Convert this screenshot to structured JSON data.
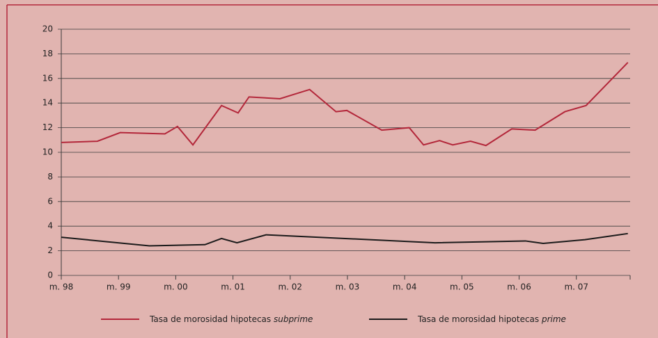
{
  "chart_data": {
    "type": "line",
    "xlim": [
      1998,
      2007.94
    ],
    "xticks": [
      {
        "value": 1998,
        "label": "m. 98"
      },
      {
        "value": 1999,
        "label": "m. 99"
      },
      {
        "value": 2000,
        "label": "m. 00"
      },
      {
        "value": 2001,
        "label": "m. 01"
      },
      {
        "value": 2002,
        "label": "m. 02"
      },
      {
        "value": 2003,
        "label": "m. 03"
      },
      {
        "value": 2004,
        "label": "m. 04"
      },
      {
        "value": 2005,
        "label": "m. 05"
      },
      {
        "value": 2006,
        "label": "m. 06"
      },
      {
        "value": 2007,
        "label": "m. 07"
      }
    ],
    "ylim": [
      0,
      20
    ],
    "yticks": [
      0,
      2,
      4,
      6,
      8,
      10,
      12,
      14,
      16,
      18,
      20
    ],
    "grid": true,
    "series": [
      {
        "name": "Tasa de morosidad hipotecas subprime",
        "color": "#b3273a",
        "x": [
          1998.0,
          1998.63,
          1999.03,
          1999.81,
          2000.03,
          2000.3,
          2000.8,
          2001.09,
          2001.28,
          2001.82,
          2002.34,
          2002.8,
          2002.99,
          2003.6,
          2004.08,
          2004.33,
          2004.61,
          2004.84,
          2005.15,
          2005.42,
          2005.87,
          2006.28,
          2006.8,
          2007.17,
          2007.9
        ],
        "values": [
          10.8,
          10.9,
          11.6,
          11.5,
          12.1,
          10.6,
          13.8,
          13.2,
          14.5,
          14.35,
          15.1,
          13.3,
          13.4,
          11.8,
          12.0,
          10.6,
          10.95,
          10.6,
          10.9,
          10.55,
          11.9,
          11.8,
          13.3,
          13.8,
          17.3
        ]
      },
      {
        "name": "Tasa de morosidad hipotecas prime",
        "color": "#1a1a1a",
        "x": [
          1998.0,
          1999.54,
          2000.51,
          2000.8,
          2001.07,
          2001.58,
          2004.53,
          2006.11,
          2006.42,
          2007.15,
          2007.9
        ],
        "values": [
          3.1,
          2.4,
          2.5,
          3.0,
          2.65,
          3.3,
          2.65,
          2.8,
          2.6,
          2.9,
          3.4
        ]
      }
    ]
  }
}
